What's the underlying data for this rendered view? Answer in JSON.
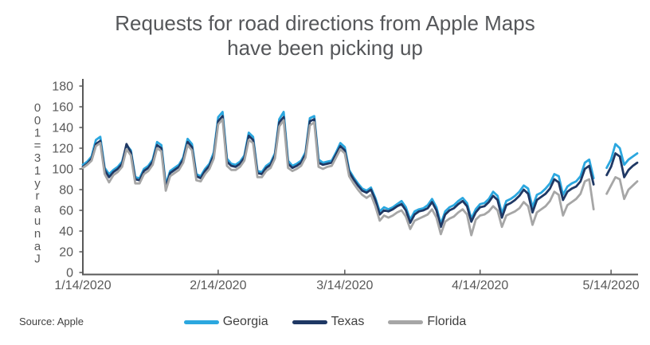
{
  "window": {
    "background": "#ffffff"
  },
  "title": {
    "line1": "Requests for road directions from Apple Maps",
    "line2": "have been picking up",
    "color": "#55575a"
  },
  "source_note": "Source: Apple",
  "axes": {
    "color": "#595959",
    "y_title": "January 13 = 100",
    "y_title_stacked_chars": "001=31yraunaJ",
    "y_ticks": [
      "0",
      "20",
      "40",
      "60",
      "80",
      "100",
      "120",
      "140",
      "160",
      "180"
    ],
    "x_ticks": [
      "1/14/2020",
      "2/14/2020",
      "3/14/2020",
      "4/14/2020",
      "5/14/2020"
    ]
  },
  "legend": {
    "items": [
      {
        "label": "Georgia",
        "color": "#2ba7df"
      },
      {
        "label": "Texas",
        "color": "#1f3864"
      },
      {
        "label": "Florida",
        "color": "#a6a6a6"
      }
    ]
  },
  "chart_data": {
    "type": "line",
    "title": "Requests for road directions from Apple Maps have been picking up",
    "xlabel": "",
    "ylabel": "January 13 = 100",
    "ylim": [
      0,
      180
    ],
    "ytick_step": 20,
    "grid": false,
    "legend_position": "bottom",
    "missing_dates": [
      "5/11/2020",
      "5/12/2020"
    ],
    "x_tick_labels": [
      "1/14/2020",
      "2/14/2020",
      "3/14/2020",
      "4/14/2020",
      "5/14/2020"
    ],
    "x": [
      "1/14/2020",
      "1/15/2020",
      "1/16/2020",
      "1/17/2020",
      "1/18/2020",
      "1/19/2020",
      "1/20/2020",
      "1/21/2020",
      "1/22/2020",
      "1/23/2020",
      "1/24/2020",
      "1/25/2020",
      "1/26/2020",
      "1/27/2020",
      "1/28/2020",
      "1/29/2020",
      "1/30/2020",
      "1/31/2020",
      "2/1/2020",
      "2/2/2020",
      "2/3/2020",
      "2/4/2020",
      "2/5/2020",
      "2/6/2020",
      "2/7/2020",
      "2/8/2020",
      "2/9/2020",
      "2/10/2020",
      "2/11/2020",
      "2/12/2020",
      "2/13/2020",
      "2/14/2020",
      "2/15/2020",
      "2/16/2020",
      "2/17/2020",
      "2/18/2020",
      "2/19/2020",
      "2/20/2020",
      "2/21/2020",
      "2/22/2020",
      "2/23/2020",
      "2/24/2020",
      "2/25/2020",
      "2/26/2020",
      "2/27/2020",
      "2/28/2020",
      "2/29/2020",
      "3/1/2020",
      "3/2/2020",
      "3/3/2020",
      "3/4/2020",
      "3/5/2020",
      "3/6/2020",
      "3/7/2020",
      "3/8/2020",
      "3/9/2020",
      "3/10/2020",
      "3/11/2020",
      "3/12/2020",
      "3/13/2020",
      "3/14/2020",
      "3/15/2020",
      "3/16/2020",
      "3/17/2020",
      "3/18/2020",
      "3/19/2020",
      "3/20/2020",
      "3/21/2020",
      "3/22/2020",
      "3/23/2020",
      "3/24/2020",
      "3/25/2020",
      "3/26/2020",
      "3/27/2020",
      "3/28/2020",
      "3/29/2020",
      "3/30/2020",
      "3/31/2020",
      "4/1/2020",
      "4/2/2020",
      "4/3/2020",
      "4/4/2020",
      "4/5/2020",
      "4/6/2020",
      "4/7/2020",
      "4/8/2020",
      "4/9/2020",
      "4/10/2020",
      "4/11/2020",
      "4/12/2020",
      "4/13/2020",
      "4/14/2020",
      "4/15/2020",
      "4/16/2020",
      "4/17/2020",
      "4/18/2020",
      "4/19/2020",
      "4/20/2020",
      "4/21/2020",
      "4/22/2020",
      "4/23/2020",
      "4/24/2020",
      "4/25/2020",
      "4/26/2020",
      "4/27/2020",
      "4/28/2020",
      "4/29/2020",
      "4/30/2020",
      "5/1/2020",
      "5/2/2020",
      "5/3/2020",
      "5/4/2020",
      "5/5/2020",
      "5/6/2020",
      "5/7/2020",
      "5/8/2020",
      "5/9/2020",
      "5/10/2020",
      "5/11/2020",
      "5/12/2020",
      "5/13/2020",
      "5/14/2020",
      "5/15/2020",
      "5/16/2020",
      "5/17/2020",
      "5/18/2020",
      "5/19/2020",
      "5/20/2020"
    ],
    "series": [
      {
        "name": "Georgia",
        "color": "#2ba7df",
        "values": [
          104,
          107,
          112,
          128,
          131,
          101,
          95,
          99,
          102,
          107,
          123,
          118,
          92,
          91,
          100,
          103,
          109,
          126,
          123,
          85,
          98,
          101,
          104,
          111,
          129,
          124,
          95,
          93,
          100,
          105,
          116,
          150,
          155,
          110,
          105,
          104,
          107,
          113,
          135,
          131,
          98,
          97,
          103,
          106,
          115,
          148,
          155,
          108,
          103,
          105,
          108,
          116,
          149,
          151,
          109,
          106,
          107,
          108,
          116,
          125,
          121,
          99,
          92,
          86,
          81,
          79,
          82,
          72,
          59,
          63,
          61,
          63,
          66,
          69,
          63,
          51,
          59,
          61,
          62,
          65,
          71,
          63,
          47,
          59,
          63,
          65,
          69,
          72,
          67,
          52,
          61,
          66,
          67,
          71,
          78,
          74,
          57,
          69,
          71,
          74,
          78,
          84,
          81,
          63,
          75,
          77,
          81,
          86,
          95,
          93,
          75,
          83,
          86,
          88,
          93,
          106,
          109,
          91,
          null,
          null,
          101,
          109,
          124,
          120,
          104,
          109,
          112,
          115
        ]
      },
      {
        "name": "Texas",
        "color": "#1f3864",
        "values": [
          102,
          105,
          110,
          124,
          127,
          99,
          92,
          97,
          100,
          105,
          124,
          116,
          90,
          89,
          98,
          101,
          107,
          123,
          120,
          82,
          96,
          99,
          102,
          109,
          126,
          121,
          93,
          91,
          98,
          103,
          113,
          146,
          151,
          107,
          103,
          102,
          105,
          111,
          132,
          128,
          96,
          95,
          101,
          104,
          113,
          145,
          150,
          105,
          101,
          103,
          106,
          114,
          146,
          148,
          106,
          104,
          105,
          106,
          114,
          122,
          118,
          97,
          90,
          84,
          79,
          77,
          80,
          70,
          56,
          60,
          59,
          61,
          64,
          66,
          60,
          48,
          56,
          59,
          60,
          62,
          68,
          60,
          44,
          56,
          60,
          62,
          66,
          69,
          64,
          49,
          58,
          63,
          64,
          68,
          74,
          70,
          53,
          65,
          67,
          70,
          74,
          80,
          76,
          58,
          70,
          73,
          76,
          81,
          90,
          87,
          70,
          78,
          81,
          83,
          88,
          100,
          103,
          85,
          null,
          null,
          94,
          102,
          115,
          112,
          92,
          99,
          103,
          106
        ]
      },
      {
        "name": "Florida",
        "color": "#a6a6a6",
        "values": [
          101,
          104,
          108,
          122,
          125,
          95,
          87,
          94,
          97,
          102,
          119,
          113,
          86,
          86,
          95,
          98,
          104,
          120,
          117,
          79,
          93,
          96,
          99,
          106,
          123,
          118,
          89,
          88,
          95,
          100,
          110,
          143,
          148,
          103,
          99,
          99,
          102,
          108,
          128,
          125,
          92,
          92,
          98,
          101,
          110,
          141,
          147,
          101,
          98,
          100,
          103,
          111,
          142,
          145,
          102,
          100,
          102,
          103,
          111,
          119,
          115,
          93,
          86,
          80,
          75,
          72,
          75,
          64,
          50,
          55,
          53,
          55,
          58,
          60,
          54,
          42,
          50,
          52,
          54,
          56,
          61,
          53,
          37,
          49,
          52,
          54,
          58,
          61,
          56,
          36,
          51,
          55,
          56,
          59,
          64,
          60,
          44,
          55,
          57,
          59,
          62,
          68,
          64,
          46,
          58,
          61,
          64,
          69,
          78,
          75,
          55,
          65,
          68,
          71,
          76,
          88,
          90,
          61,
          null,
          null,
          76,
          84,
          92,
          90,
          71,
          80,
          84,
          88
        ]
      }
    ]
  }
}
